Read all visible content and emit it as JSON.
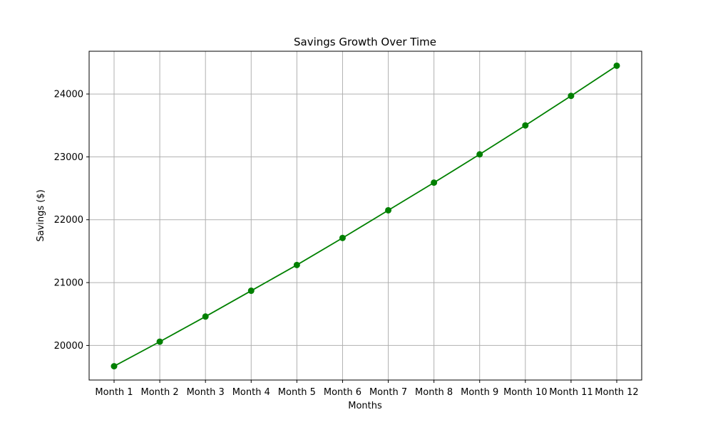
{
  "chart_data": {
    "type": "line",
    "title": "Savings Growth Over Time",
    "xlabel": "Months",
    "ylabel": "Savings ($)",
    "categories": [
      "Month 1",
      "Month 2",
      "Month 3",
      "Month 4",
      "Month 5",
      "Month 6",
      "Month 7",
      "Month 8",
      "Month 9",
      "Month 10",
      "Month 11",
      "Month 12"
    ],
    "series": [
      {
        "values": [
          19670,
          20060,
          20460,
          20870,
          21280,
          21710,
          22150,
          22590,
          23040,
          23500,
          23970,
          24450
        ],
        "color": "#008000",
        "marker": "circle"
      }
    ],
    "ylim": [
      19450,
      24680
    ],
    "yticks": [
      20000,
      21000,
      22000,
      23000,
      24000
    ],
    "grid": true,
    "colors": {
      "grid": "#b0b0b0",
      "axes": "#000000",
      "line": "#008000"
    }
  }
}
